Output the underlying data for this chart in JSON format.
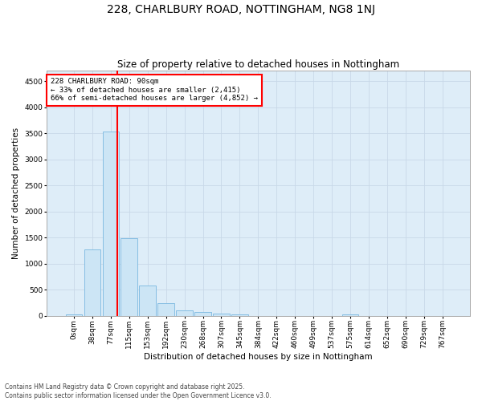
{
  "title": "228, CHARLBURY ROAD, NOTTINGHAM, NG8 1NJ",
  "subtitle": "Size of property relative to detached houses in Nottingham",
  "xlabel": "Distribution of detached houses by size in Nottingham",
  "ylabel": "Number of detached properties",
  "bar_color": "#cce5f5",
  "bar_edge_color": "#7ab8e0",
  "grid_color": "#c8d8e8",
  "bg_color": "#deedf8",
  "annotation_text": "228 CHARLBURY ROAD: 90sqm\n← 33% of detached houses are smaller (2,415)\n66% of semi-detached houses are larger (4,852) →",
  "vline_color": "red",
  "vline_x": 2.35,
  "bins": [
    "0sqm",
    "38sqm",
    "77sqm",
    "115sqm",
    "153sqm",
    "192sqm",
    "230sqm",
    "268sqm",
    "307sqm",
    "345sqm",
    "384sqm",
    "422sqm",
    "460sqm",
    "499sqm",
    "537sqm",
    "575sqm",
    "614sqm",
    "652sqm",
    "690sqm",
    "729sqm",
    "767sqm"
  ],
  "values": [
    30,
    1280,
    3530,
    1490,
    590,
    245,
    110,
    80,
    50,
    30,
    0,
    0,
    0,
    0,
    0,
    30,
    0,
    0,
    0,
    0,
    0
  ],
  "ylim": [
    0,
    4700
  ],
  "yticks": [
    0,
    500,
    1000,
    1500,
    2000,
    2500,
    3000,
    3500,
    4000,
    4500
  ],
  "footer": "Contains HM Land Registry data © Crown copyright and database right 2025.\nContains public sector information licensed under the Open Government Licence v3.0.",
  "title_fontsize": 10,
  "subtitle_fontsize": 8.5,
  "tick_fontsize": 6.5,
  "ylabel_fontsize": 7.5,
  "xlabel_fontsize": 7.5,
  "footer_fontsize": 5.5
}
